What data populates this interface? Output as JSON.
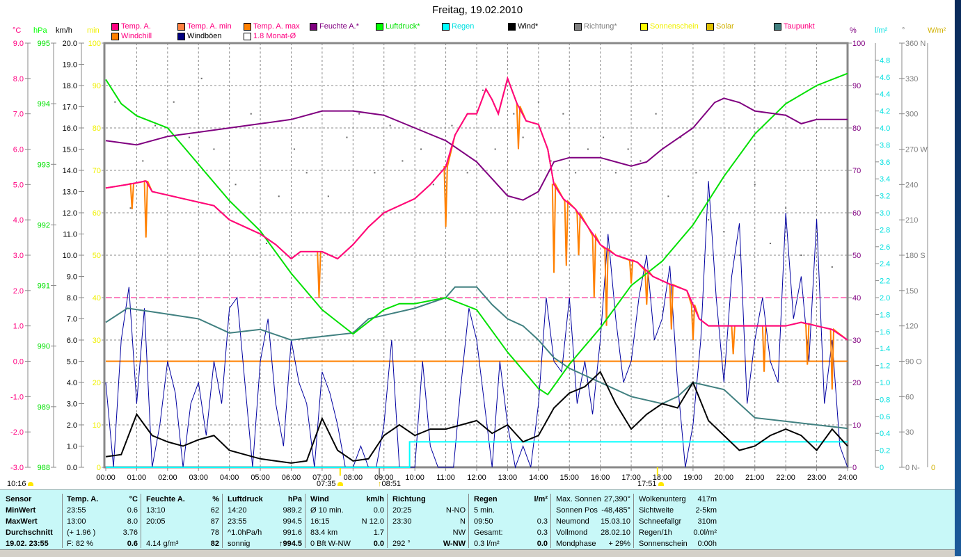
{
  "title": "Freitag, 19.02.2010",
  "legend": [
    {
      "label": "Temp. A.",
      "color": "#ff0080",
      "text": "#ff0080"
    },
    {
      "label": "Temp. A. min",
      "color": "#ff8040",
      "text": "#ff0080"
    },
    {
      "label": "Temp. A. max",
      "color": "#ff8000",
      "text": "#ff0080"
    },
    {
      "label": "Feuchte A.*",
      "color": "#800080",
      "text": "#800080"
    },
    {
      "label": "Luftdruck*",
      "color": "#00ff00",
      "text": "#00e000"
    },
    {
      "label": "Regen",
      "color": "#00ffff",
      "text": "#00e0e0"
    },
    {
      "label": "Wind*",
      "color": "#000000",
      "text": "#000000"
    },
    {
      "label": "Richtung*",
      "color": "#808080",
      "text": "#808080"
    },
    {
      "label": "Sonnenschein",
      "color": "#ffff00",
      "text": "#f0f000"
    },
    {
      "label": "Solar",
      "color": "#e0c000",
      "text": "#d0b000"
    },
    {
      "label": "Taupunkt",
      "color": "#408080",
      "text": "#ff0080"
    },
    {
      "label": "Windchill",
      "color": "#ff8000",
      "text": "#ff0080"
    },
    {
      "label": "Windböen",
      "color": "#000080",
      "text": "#000000"
    },
    {
      "label": "1.8 Monat-Ø",
      "color": "#ffffff",
      "text": "#ff0080"
    }
  ],
  "units": {
    "temp": "°C",
    "pressure": "hPa",
    "wind": "km/h",
    "sun": "min",
    "humidity": "%",
    "rain": "l/m²",
    "direction": "°",
    "solar": "W/m²"
  },
  "axes": {
    "temp_ticks": [
      "9.0",
      "8.0",
      "7.0",
      "6.0",
      "5.0",
      "4.0",
      "3.0",
      "2.0",
      "1.0",
      "0.0",
      "-1.0",
      "-2.0",
      "-3.0"
    ],
    "pressure_ticks": [
      "995",
      "994",
      "993",
      "992",
      "991",
      "990",
      "989",
      "988"
    ],
    "wind_ticks": [
      "20.0",
      "19.0",
      "18.0",
      "17.0",
      "16.0",
      "15.0",
      "14.0",
      "13.0",
      "12.0",
      "11.0",
      "10.0",
      "9.0",
      "8.0",
      "7.0",
      "6.0",
      "5.0",
      "4.0",
      "3.0",
      "2.0",
      "1.0",
      "0.0"
    ],
    "sun_ticks": [
      "100",
      "90",
      "80",
      "70",
      "60",
      "50",
      "40",
      "30",
      "20",
      "10",
      "0"
    ],
    "humidity_ticks": [
      "100",
      "90",
      "80",
      "70",
      "60",
      "50",
      "40",
      "30",
      "20",
      "10",
      "0"
    ],
    "rain_ticks": [
      "4.8",
      "4.6",
      "4.4",
      "4.2",
      "4.0",
      "3.8",
      "3.6",
      "3.4",
      "3.2",
      "3.0",
      "2.8",
      "2.6",
      "2.4",
      "2.2",
      "2.0",
      "1.8",
      "1.6",
      "1.4",
      "1.2",
      "1.0",
      "0.8",
      "0.6",
      "0.4",
      "0.2",
      "0"
    ],
    "direction_ticks": [
      "360 N",
      "330",
      "300",
      "270 W",
      "240",
      "210",
      "180 S",
      "150",
      "120",
      "90 O",
      "60",
      "30",
      "0 N-"
    ],
    "solar_ticks": [
      "0"
    ],
    "time_ticks": [
      "00:00",
      "01:00",
      "02:00",
      "03:00",
      "04:00",
      "05:00",
      "06:00",
      "07:00",
      "08:00",
      "09:00",
      "10:00",
      "11:00",
      "12:00",
      "13:00",
      "14:00",
      "15:00",
      "16:00",
      "17:00",
      "18:00",
      "19:00",
      "20:00",
      "21:00",
      "22:00",
      "23:00",
      "24:00"
    ]
  },
  "sun": {
    "daylength": "10:16",
    "sunrise": "07:35",
    "transit": "08:51",
    "sunset": "17:51"
  },
  "chart_data": {
    "type": "line",
    "title": "Freitag, 19.02.2010",
    "x_range_hours": [
      0,
      24
    ],
    "monthly_avg_temp": 1.8,
    "frost_line_temp": 0.0,
    "temperature": [
      [
        0,
        4.9
      ],
      [
        0.7,
        5.0
      ],
      [
        1.3,
        5.1
      ],
      [
        1.5,
        4.8
      ],
      [
        2,
        4.7
      ],
      [
        2.5,
        4.6
      ],
      [
        3.5,
        4.4
      ],
      [
        4,
        4.0
      ],
      [
        4.5,
        3.8
      ],
      [
        5,
        3.6
      ],
      [
        5.5,
        3.3
      ],
      [
        6,
        2.9
      ],
      [
        6.3,
        3.1
      ],
      [
        7,
        3.1
      ],
      [
        7.5,
        2.9
      ],
      [
        8,
        3.3
      ],
      [
        8.5,
        3.8
      ],
      [
        9,
        4.2
      ],
      [
        10,
        4.6
      ],
      [
        10.5,
        5.0
      ],
      [
        11,
        5.5
      ],
      [
        11.3,
        6.4
      ],
      [
        11.7,
        7.0
      ],
      [
        12,
        7.0
      ],
      [
        12.3,
        7.7
      ],
      [
        12.5,
        7.4
      ],
      [
        12.7,
        7.0
      ],
      [
        13,
        8.0
      ],
      [
        13.3,
        7.3
      ],
      [
        13.6,
        6.8
      ],
      [
        14,
        6.7
      ],
      [
        14.3,
        6.0
      ],
      [
        14.5,
        5.0
      ],
      [
        14.8,
        4.6
      ],
      [
        15.2,
        4.3
      ],
      [
        15.6,
        3.8
      ],
      [
        16,
        3.3
      ],
      [
        16.5,
        3.0
      ],
      [
        17.2,
        2.8
      ],
      [
        17.7,
        2.4
      ],
      [
        18.2,
        2.2
      ],
      [
        18.8,
        2.0
      ],
      [
        19.2,
        1.2
      ],
      [
        19.5,
        1.0
      ],
      [
        20,
        1.0
      ],
      [
        21,
        1.0
      ],
      [
        22,
        1.0
      ],
      [
        22.5,
        1.1
      ],
      [
        23,
        1.0
      ],
      [
        23.5,
        0.9
      ],
      [
        24,
        0.6
      ]
    ],
    "windchill_dips": [
      [
        0.85,
        4.3
      ],
      [
        1.3,
        3.5
      ],
      [
        6.9,
        1.8
      ],
      [
        11,
        3.8
      ],
      [
        13.35,
        6.0
      ],
      [
        14.5,
        2.5
      ],
      [
        14.9,
        2.7
      ],
      [
        15.3,
        3.0
      ],
      [
        15.8,
        1.8
      ],
      [
        16.2,
        1.0
      ],
      [
        17,
        2.2
      ],
      [
        17.5,
        1.6
      ],
      [
        18.3,
        0.9
      ],
      [
        19.0,
        0.6
      ],
      [
        20.3,
        0.2
      ],
      [
        21.3,
        -0.3
      ],
      [
        22.7,
        -0.1
      ],
      [
        23.5,
        -0.8
      ]
    ],
    "humidity": [
      [
        0,
        77
      ],
      [
        1,
        76
      ],
      [
        2,
        78
      ],
      [
        3,
        79
      ],
      [
        4,
        80
      ],
      [
        5,
        81
      ],
      [
        6,
        82
      ],
      [
        7,
        84
      ],
      [
        8,
        84
      ],
      [
        9,
        83
      ],
      [
        10,
        80
      ],
      [
        11,
        77
      ],
      [
        12,
        72
      ],
      [
        12.5,
        68
      ],
      [
        13,
        64
      ],
      [
        13.5,
        63
      ],
      [
        14,
        65
      ],
      [
        14.5,
        72
      ],
      [
        15,
        73
      ],
      [
        16,
        73
      ],
      [
        17,
        71
      ],
      [
        17.5,
        72
      ],
      [
        18,
        75
      ],
      [
        19,
        80
      ],
      [
        19.7,
        86
      ],
      [
        20,
        87
      ],
      [
        20.5,
        86
      ],
      [
        21,
        84
      ],
      [
        22,
        83
      ],
      [
        22.5,
        81
      ],
      [
        23,
        82
      ],
      [
        24,
        82
      ]
    ],
    "pressure": [
      [
        0,
        994.4
      ],
      [
        0.5,
        994.0
      ],
      [
        1,
        993.8
      ],
      [
        2,
        993.6
      ],
      [
        3,
        993.0
      ],
      [
        4,
        992.4
      ],
      [
        5,
        991.9
      ],
      [
        6,
        991.2
      ],
      [
        7,
        990.6
      ],
      [
        7.5,
        990.4
      ],
      [
        8,
        990.2
      ],
      [
        9,
        990.6
      ],
      [
        9.5,
        990.7
      ],
      [
        10,
        990.7
      ],
      [
        11,
        990.8
      ],
      [
        12,
        990.6
      ],
      [
        13,
        989.9
      ],
      [
        14,
        989.3
      ],
      [
        14.3,
        989.2
      ],
      [
        15,
        989.7
      ],
      [
        16,
        990.3
      ],
      [
        17,
        991.0
      ],
      [
        18,
        991.4
      ],
      [
        19,
        992.0
      ],
      [
        20,
        992.8
      ],
      [
        21,
        993.5
      ],
      [
        22,
        994.0
      ],
      [
        23,
        994.3
      ],
      [
        24,
        994.5
      ]
    ],
    "dewpoint": [
      [
        0,
        1.1
      ],
      [
        0.7,
        1.5
      ],
      [
        1.5,
        1.4
      ],
      [
        3,
        1.2
      ],
      [
        4,
        0.8
      ],
      [
        5,
        0.9
      ],
      [
        6,
        0.6
      ],
      [
        7,
        0.7
      ],
      [
        8,
        0.8
      ],
      [
        8.5,
        1.2
      ],
      [
        9,
        1.3
      ],
      [
        10,
        1.5
      ],
      [
        11,
        1.8
      ],
      [
        11.3,
        2.1
      ],
      [
        12,
        2.1
      ],
      [
        12.5,
        1.6
      ],
      [
        13,
        1.2
      ],
      [
        13.5,
        1.0
      ],
      [
        14,
        0.6
      ],
      [
        14.5,
        0.1
      ],
      [
        15,
        -0.2
      ],
      [
        16,
        -0.6
      ],
      [
        17,
        -1.0
      ],
      [
        18,
        -1.2
      ],
      [
        18.5,
        -1.0
      ],
      [
        19,
        -0.6
      ],
      [
        20,
        -0.8
      ],
      [
        20.5,
        -1.2
      ],
      [
        21,
        -1.6
      ],
      [
        22,
        -1.7
      ],
      [
        23,
        -1.8
      ],
      [
        24,
        -1.9
      ]
    ],
    "wind_avg": [
      0.5,
      0.6,
      2.5,
      1.5,
      1.2,
      1.0,
      1.3,
      1.5,
      0.8,
      0.6,
      0.4,
      0.3,
      0.2,
      0.3,
      2.3,
      0.8,
      0.3,
      0.4,
      1.5,
      2.0,
      1.5,
      1.8,
      1.8,
      2.0,
      2.2,
      1.6,
      2.0,
      1.2,
      1.5,
      2.8,
      3.5,
      3.8,
      4.5,
      3.0,
      1.8,
      2.5,
      3.0,
      2.8,
      4.0,
      2.2,
      1.5,
      0.8,
      1.0,
      1.5,
      1.8,
      1.5,
      0.8,
      1.8,
      1.0
    ],
    "wind_gusts": [
      4,
      0,
      6,
      8.5,
      3,
      7.5,
      0,
      2,
      5,
      3.5,
      0,
      3,
      4,
      1.5,
      5,
      3,
      7.5,
      8,
      4,
      0,
      5,
      7,
      3,
      1,
      6,
      4,
      3,
      0,
      4.5,
      3.5,
      2,
      0,
      0,
      1,
      0,
      0,
      2,
      6,
      0,
      0,
      0,
      5,
      1,
      0,
      0,
      0,
      4,
      7.5,
      6,
      3,
      0,
      5,
      2,
      0,
      1,
      0,
      3,
      8,
      5,
      4.5,
      8,
      3,
      5,
      2.5,
      6,
      11,
      7,
      4,
      5,
      8,
      10,
      6,
      7,
      9.5,
      4,
      0,
      2,
      6,
      13.5,
      8,
      4,
      9,
      11.5,
      3,
      6,
      8,
      5,
      4,
      12,
      7,
      9,
      5,
      11.7,
      3,
      6,
      1,
      0
    ],
    "rain": [
      [
        0,
        0
      ],
      [
        9.83,
        0
      ],
      [
        9.83,
        0.3
      ],
      [
        24,
        0.3
      ]
    ],
    "direction": [
      [
        0.3,
        310
      ],
      [
        0.8,
        220
      ],
      [
        1.2,
        260
      ],
      [
        1.6,
        290
      ],
      [
        2.2,
        310
      ],
      [
        2.7,
        280
      ],
      [
        3.1,
        330
      ],
      [
        3.5,
        270
      ],
      [
        4.2,
        240
      ],
      [
        4.7,
        300
      ],
      [
        5.2,
        190
      ],
      [
        5.6,
        230
      ],
      [
        6.1,
        270
      ],
      [
        6.5,
        250
      ],
      [
        7.2,
        230
      ],
      [
        7.8,
        280
      ],
      [
        8.2,
        300
      ],
      [
        8.7,
        250
      ],
      [
        9.2,
        290
      ],
      [
        9.6,
        260
      ],
      [
        10.2,
        270
      ],
      [
        10.6,
        240
      ],
      [
        11.2,
        290
      ],
      [
        11.7,
        250
      ],
      [
        12.2,
        320
      ],
      [
        12.6,
        270
      ],
      [
        13.2,
        300
      ],
      [
        13.5,
        280
      ],
      [
        14.0,
        310
      ],
      [
        14.4,
        260
      ],
      [
        14.8,
        300
      ],
      [
        15.2,
        250
      ],
      [
        15.6,
        270
      ],
      [
        16.1,
        280
      ],
      [
        16.5,
        250
      ],
      [
        16.9,
        270
      ],
      [
        17.3,
        260
      ],
      [
        17.8,
        300
      ],
      [
        18.2,
        230
      ],
      [
        18.6,
        280
      ],
      [
        19.1,
        250
      ],
      [
        19.5,
        210
      ],
      [
        20.0,
        200
      ],
      [
        20.5,
        180
      ],
      [
        21.0,
        240
      ],
      [
        21.5,
        190
      ],
      [
        22.0,
        220
      ],
      [
        22.5,
        180
      ],
      [
        23.0,
        200
      ],
      [
        23.5,
        170
      ]
    ]
  },
  "panel": {
    "columns": [
      {
        "head": [
          "Sensor",
          ""
        ],
        "rows": [
          [
            "MinWert",
            ""
          ],
          [
            "MaxWert",
            ""
          ],
          [
            "Durchschnitt",
            ""
          ],
          [
            "19.02. 23:55",
            ""
          ]
        ]
      },
      {
        "head": [
          "Temp. A.",
          "°C"
        ],
        "rows": [
          [
            "23:55",
            "0.6"
          ],
          [
            "13:00",
            "8.0"
          ],
          [
            "(+ 1.96 )",
            "3.76"
          ],
          [
            "F: 82 %",
            "0.6"
          ]
        ]
      },
      {
        "head": [
          "Feuchte A.",
          "%"
        ],
        "rows": [
          [
            "13:10",
            "62"
          ],
          [
            "20:05",
            "87"
          ],
          [
            "",
            "78"
          ],
          [
            "4.14 g/m³",
            "82"
          ]
        ]
      },
      {
        "head": [
          "Luftdruck",
          "hPa"
        ],
        "rows": [
          [
            "14:20",
            "989.2"
          ],
          [
            "23:55",
            "994.5"
          ],
          [
            "^1.0hPa/h",
            "991.6"
          ],
          [
            "sonnig",
            "↑994.5"
          ]
        ]
      },
      {
        "head": [
          "Wind",
          "km/h"
        ],
        "rows": [
          [
            "Ø 10 min.",
            "0.0"
          ],
          [
            "16:15",
            "N 12.0"
          ],
          [
            "83.4 km",
            "1.7"
          ],
          [
            "0 Bft W-NW",
            "0.0"
          ]
        ]
      },
      {
        "head": [
          "Richtung",
          ""
        ],
        "rows": [
          [
            "20:25",
            "N-NO"
          ],
          [
            "23:30",
            "N"
          ],
          [
            "",
            "NW"
          ],
          [
            "292 °",
            "W-NW"
          ]
        ]
      },
      {
        "head": [
          "Regen",
          "l/m²"
        ],
        "rows": [
          [
            "5 min.",
            ""
          ],
          [
            "09:50",
            "0.3"
          ],
          [
            "Gesamt:",
            "0.3"
          ],
          [
            "0.3 l/m²",
            "0.0"
          ]
        ]
      },
      {
        "head": [
          "Max. Sonnen",
          "27,390°"
        ],
        "rows": [
          [
            "Sonnen Pos",
            "-48,485°"
          ],
          [
            "Neumond",
            "15.03.10"
          ],
          [
            "Vollmond",
            "28.02.10"
          ],
          [
            "Mondphase",
            "+ 29%"
          ]
        ]
      },
      {
        "head": [
          "Wolkenunterg",
          "417m"
        ],
        "rows": [
          [
            "Sichtweite",
            "2-5km"
          ],
          [
            "Schneefallgr",
            "310m"
          ],
          [
            "Regen/1h",
            "0.0l/m²"
          ],
          [
            "Sonnenschein",
            "0:00h"
          ]
        ]
      }
    ]
  }
}
